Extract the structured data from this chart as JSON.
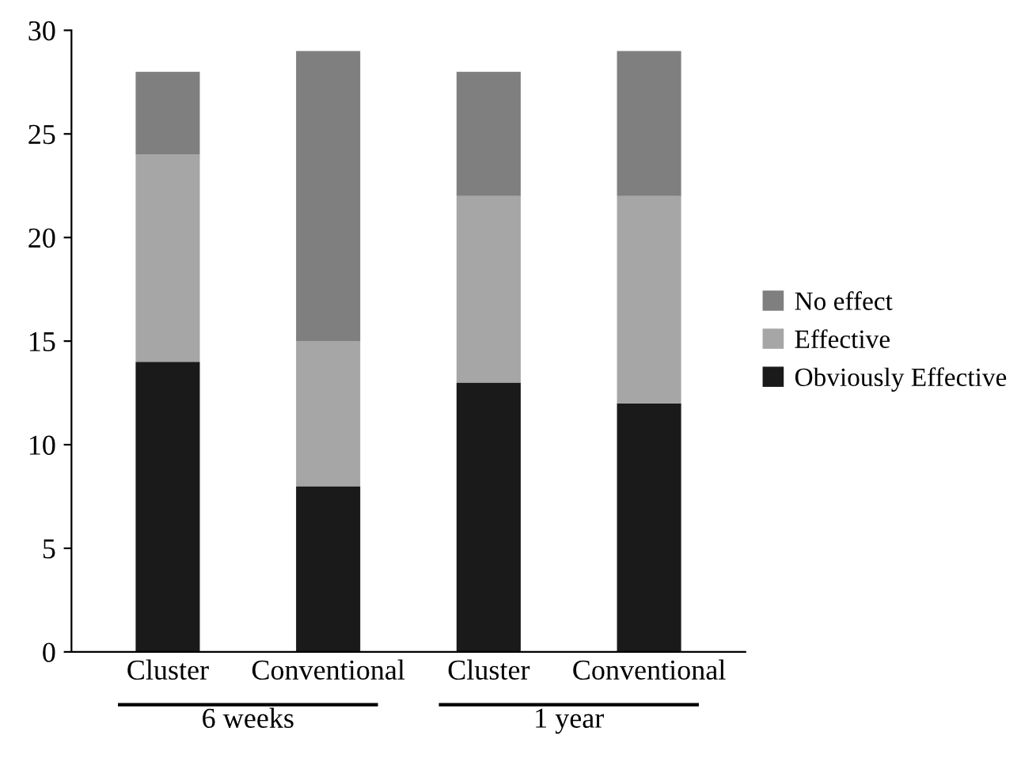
{
  "chart_data": {
    "type": "bar",
    "stacked": true,
    "categories": [
      "Cluster",
      "Conventional",
      "Cluster",
      "Conventional"
    ],
    "series": [
      {
        "name": "Obviously Effective",
        "color": "#1a1a1a",
        "values": [
          14,
          8,
          13,
          12
        ]
      },
      {
        "name": "Effective",
        "color": "#a6a6a6",
        "values": [
          10,
          7,
          9,
          10
        ]
      },
      {
        "name": "No effect",
        "color": "#7f7f7f",
        "values": [
          4,
          14,
          6,
          7
        ]
      }
    ],
    "ylim": [
      0,
      30
    ],
    "yticks": [
      0,
      5,
      10,
      15,
      20,
      25,
      30
    ],
    "grid": false,
    "legend": "right",
    "annotations": [
      "6 weeks",
      "1 year"
    ]
  }
}
